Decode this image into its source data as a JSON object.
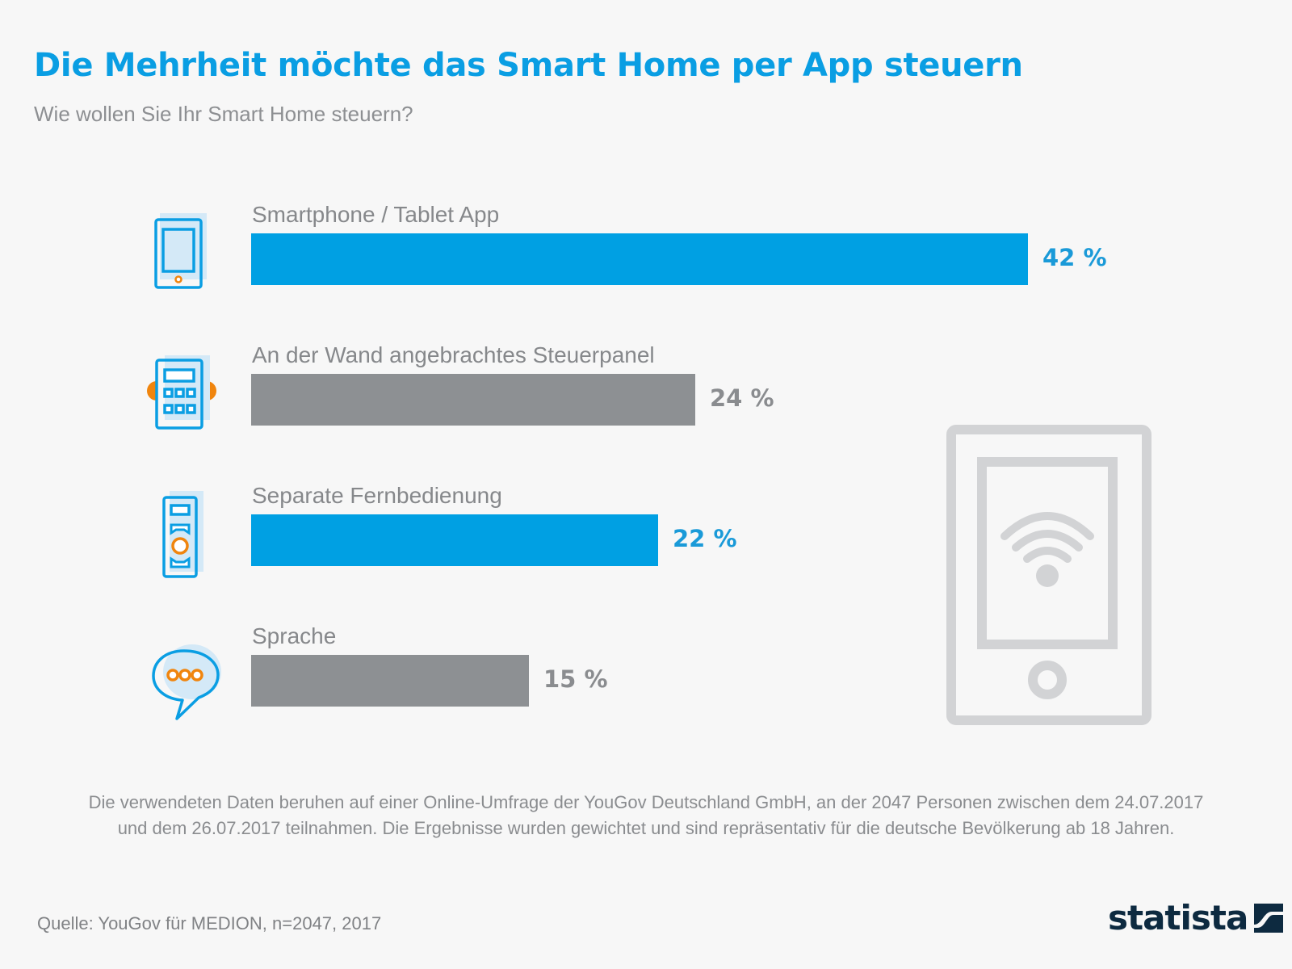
{
  "header": {
    "title": "Die Mehrheit möchte das Smart Home per App steuern",
    "subtitle": "Wie wollen Sie Ihr Smart Home steuern?"
  },
  "colors": {
    "accent_blue": "#00a0e3",
    "bar_gray": "#8d9093",
    "icon_orange": "#f0850e",
    "logo_navy": "#0d2a40"
  },
  "chart_data": {
    "type": "bar",
    "orientation": "horizontal",
    "title": "Die Mehrheit möchte das Smart Home per App steuern",
    "subtitle": "Wie wollen Sie Ihr Smart Home steuern?",
    "xlabel": "",
    "ylabel": "",
    "unit": "%",
    "xlim": [
      0,
      42
    ],
    "grid": false,
    "categories": [
      "Smartphone / Tablet App",
      "An der Wand angebrachtes Steuerpanel",
      "Separate Fernbedienung",
      "Sprache"
    ],
    "values": [
      42,
      24,
      22,
      15
    ],
    "value_labels": [
      "42 %",
      "24 %",
      "22 %",
      "15 %"
    ],
    "bar_colors": [
      "#00a0e3",
      "#8d9093",
      "#00a0e3",
      "#8d9093"
    ],
    "label_colors": [
      "#1a9ad8",
      "#8a8c8f",
      "#1a9ad8",
      "#8a8c8f"
    ],
    "icons": [
      "smartphone-icon",
      "wall-panel-icon",
      "remote-control-icon",
      "speech-bubble-icon"
    ]
  },
  "decoration": {
    "illustration": "tablet-wifi-icon"
  },
  "footer": {
    "note_line1": "Die verwendeten Daten beruhen auf einer Online-Umfrage der YouGov Deutschland GmbH, an der 2047 Personen zwischen dem 24.07.2017",
    "note_line2": "und dem 26.07.2017 teilnahmen. Die Ergebnisse wurden gewichtet und sind repräsentativ für die deutsche Bevölkerung ab 18 Jahren.",
    "source": "Quelle: YouGov für MEDION, n=2047, 2017",
    "logo_text": "statista"
  }
}
